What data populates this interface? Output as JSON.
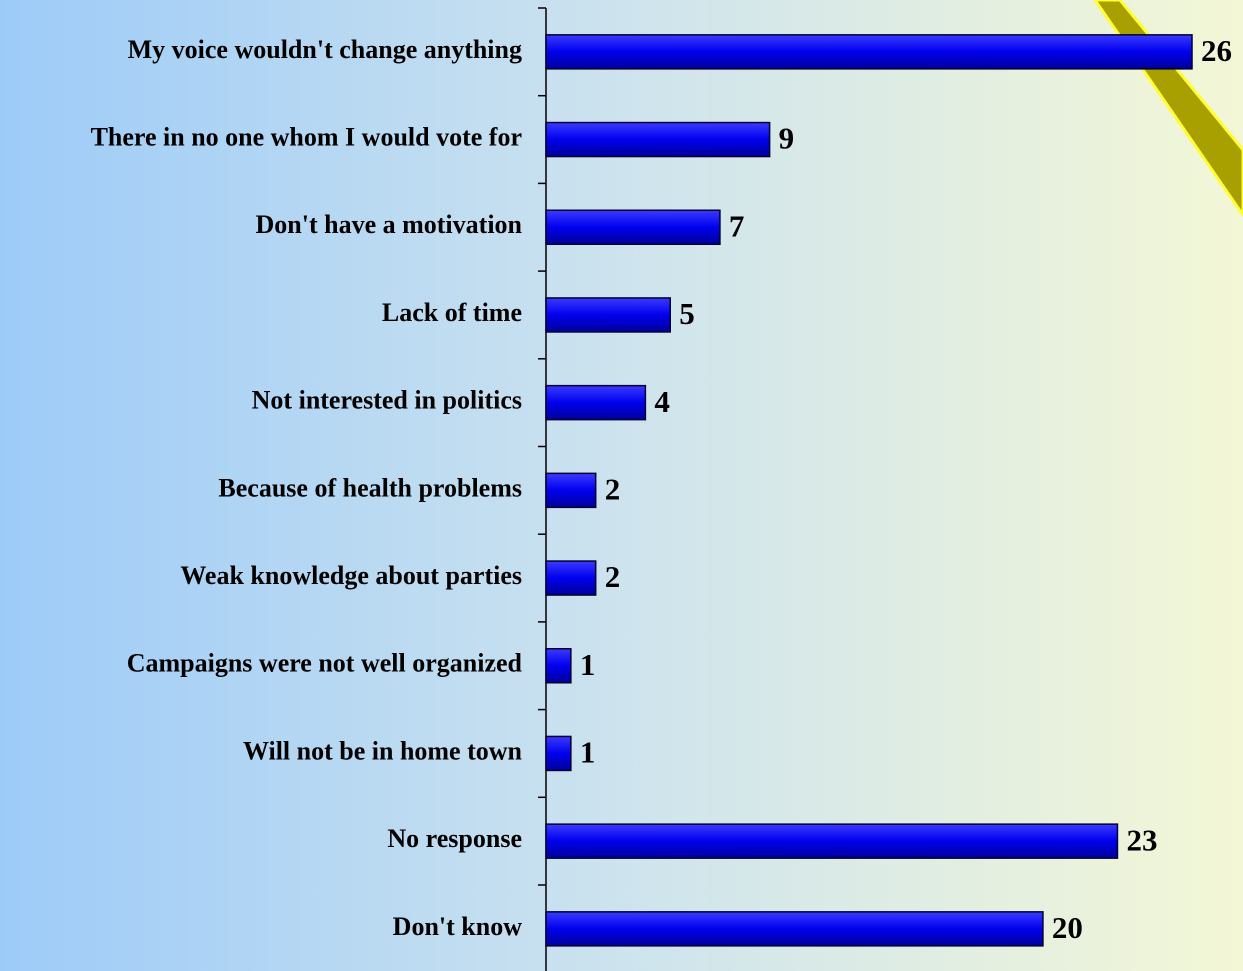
{
  "chart_data": {
    "type": "bar",
    "orientation": "horizontal",
    "categories": [
      "My voice wouldn't change anything",
      "There in no one whom I would vote for",
      "Don't have a motivation",
      "Lack of time",
      "Not interested in politics",
      "Because of health problems",
      "Weak knowledge about parties",
      "Campaigns were not well organized",
      "Will not be in home town",
      "No response",
      "Don't know"
    ],
    "values": [
      26,
      9,
      7,
      5,
      4,
      2,
      2,
      1,
      1,
      23,
      20
    ],
    "color": "#0000f0"
  }
}
